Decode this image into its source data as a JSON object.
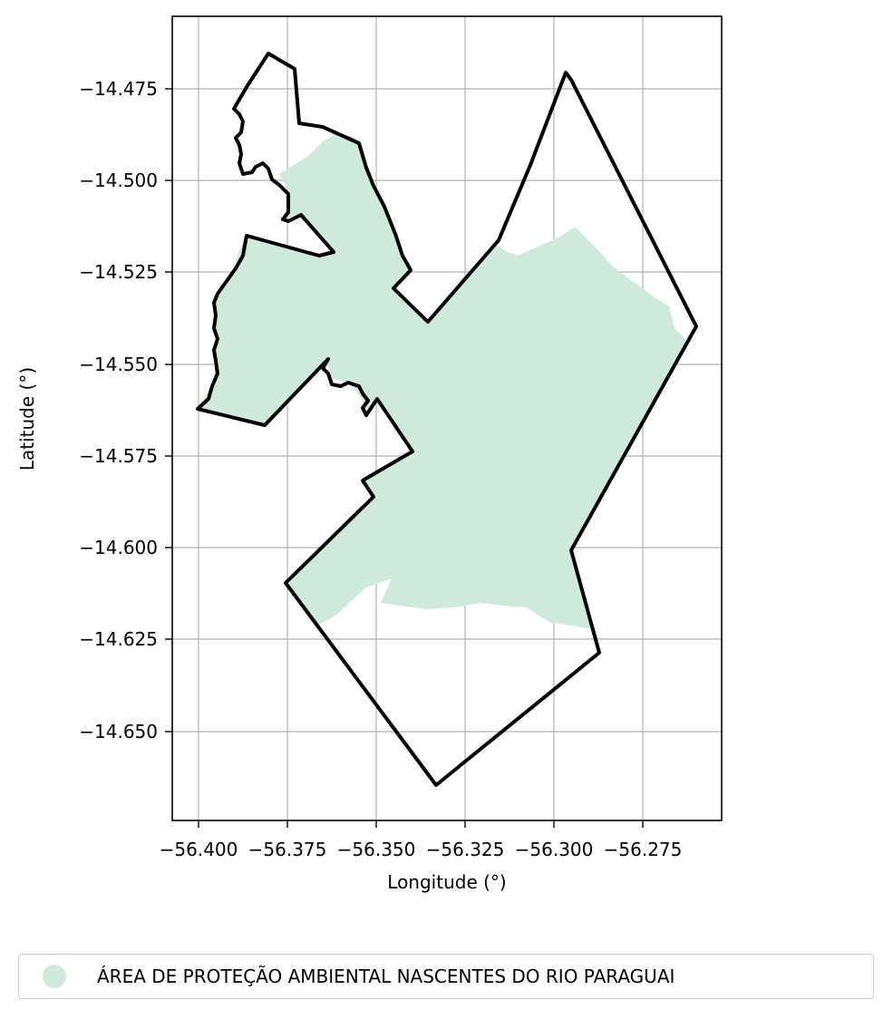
{
  "map": {
    "xlabel": "Longitude (°)",
    "ylabel": "Latitude (°)",
    "x_ticks": [
      "−56.400",
      "−56.375",
      "−56.350",
      "−56.325",
      "−56.300",
      "−56.275"
    ],
    "y_ticks": [
      "−14.475",
      "−14.500",
      "−14.525",
      "−14.550",
      "−14.575",
      "−14.600",
      "−14.625",
      "−14.650"
    ],
    "grid": true
  },
  "legend": {
    "label": "ÁREA DE PROTEÇÃO AMBIENTAL NASCENTES DO RIO PARAGUAI",
    "color": "#cfeadd"
  },
  "colors": {
    "fill": "#cfeadd",
    "boundary": "#000000",
    "grid": "#b0b0b0"
  }
}
